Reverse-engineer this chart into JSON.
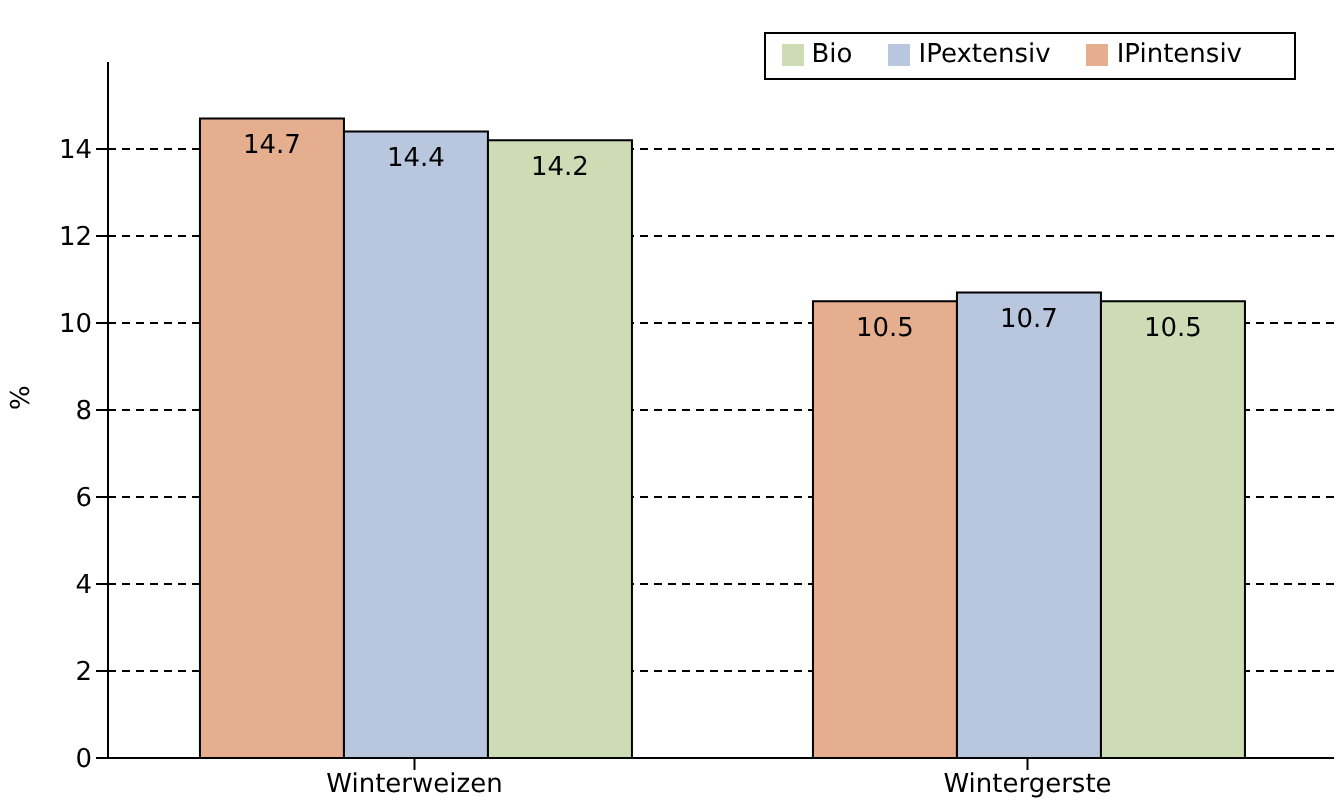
{
  "chart_data": {
    "type": "bar",
    "categories": [
      "Winterweizen",
      "Wintergerste"
    ],
    "ylabel": "%",
    "series": [
      {
        "name": "IPintensiv",
        "color": "#e5ae8e",
        "values": [
          14.7,
          10.5
        ]
      },
      {
        "name": "IPextensiv",
        "color": "#b9c7de",
        "values": [
          14.4,
          10.7
        ]
      },
      {
        "name": "Bio",
        "color": "#cddcb4",
        "values": [
          14.2,
          10.5
        ]
      }
    ],
    "ylim": [
      0,
      16
    ],
    "yticks": [
      0,
      2,
      4,
      6,
      8,
      10,
      12,
      14
    ],
    "grid": "y",
    "legend": "top right",
    "data_labels": true
  }
}
